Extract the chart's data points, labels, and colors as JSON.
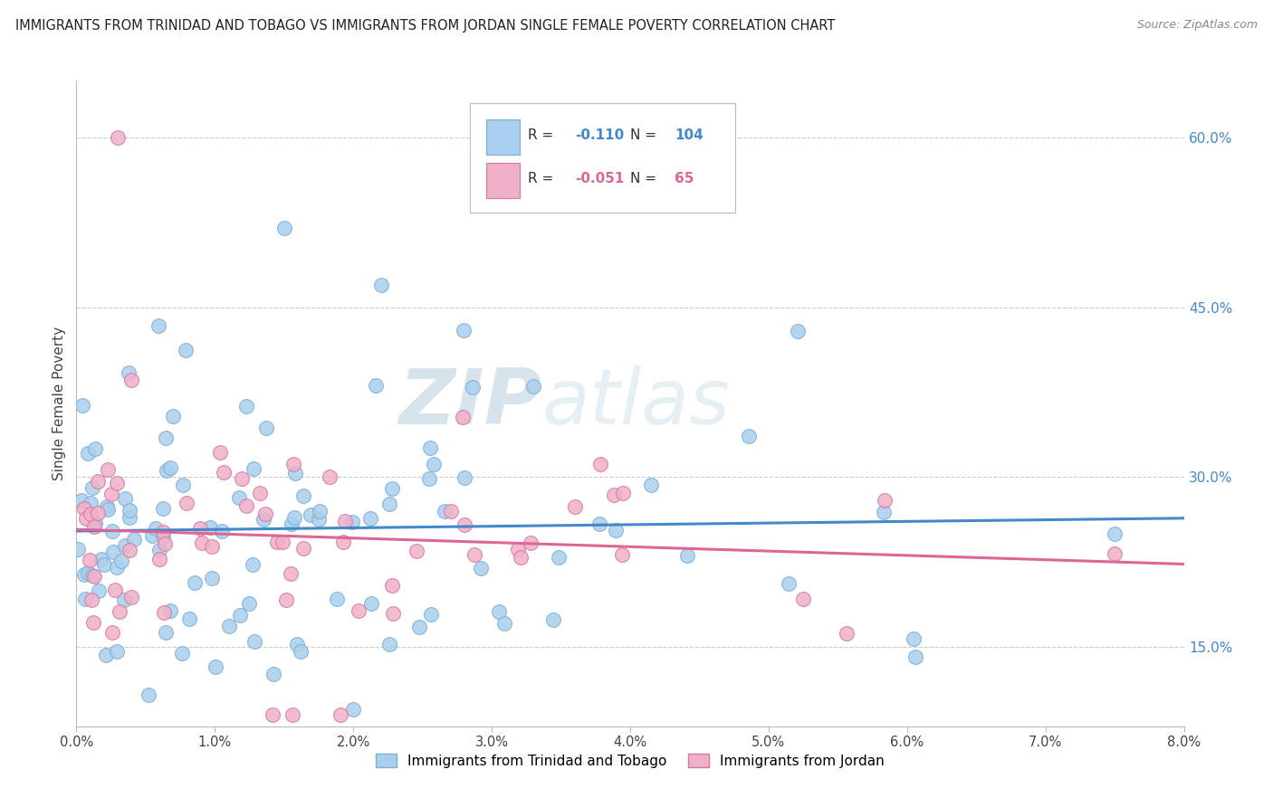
{
  "title": "IMMIGRANTS FROM TRINIDAD AND TOBAGO VS IMMIGRANTS FROM JORDAN SINGLE FEMALE POVERTY CORRELATION CHART",
  "source": "Source: ZipAtlas.com",
  "ylabel": "Single Female Poverty",
  "xlim": [
    0.0,
    0.08
  ],
  "ylim": [
    0.08,
    0.65
  ],
  "xticks": [
    0.0,
    0.01,
    0.02,
    0.03,
    0.04,
    0.05,
    0.06,
    0.07,
    0.08
  ],
  "xtick_labels": [
    "0.0%",
    "1.0%",
    "2.0%",
    "3.0%",
    "4.0%",
    "5.0%",
    "6.0%",
    "7.0%",
    "8.0%"
  ],
  "right_yticks": [
    0.15,
    0.3,
    0.45,
    0.6
  ],
  "right_ytick_labels": [
    "15.0%",
    "30.0%",
    "45.0%",
    "60.0%"
  ],
  "grid_yticks": [
    0.15,
    0.3,
    0.45,
    0.6
  ],
  "series1_color": "#aacfee",
  "series1_edge": "#7aaed4",
  "series2_color": "#f0b0c8",
  "series2_edge": "#d4789f",
  "trend1_color": "#4488cc",
  "trend2_color": "#dd6699",
  "R1": -0.11,
  "N1": 104,
  "R2": -0.051,
  "N2": 65,
  "legend1": "Immigrants from Trinidad and Tobago",
  "legend2": "Immigrants from Jordan",
  "watermark_zip": "ZIP",
  "watermark_atlas": "atlas",
  "background_color": "#ffffff",
  "grid_color": "#cccccc",
  "title_color": "#222222",
  "source_color": "#888888",
  "ylabel_color": "#444444"
}
